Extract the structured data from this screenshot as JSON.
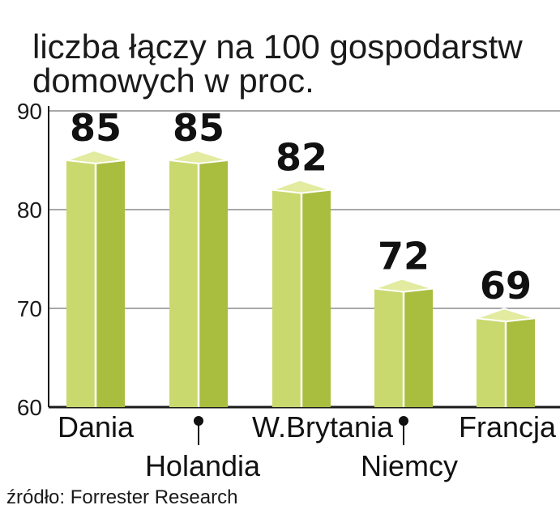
{
  "chart_data": {
    "type": "bar",
    "title": "liczba łączy na 100 gospodarstw domowych w proc.",
    "title_lines": [
      "liczba łączy na 100 gospodarstw",
      "domowych w proc."
    ],
    "categories": [
      "Dania",
      "Holandia",
      "W.Brytania",
      "Niemcy",
      "Francja"
    ],
    "values": [
      85,
      85,
      82,
      72,
      69
    ],
    "value_labels": [
      "85",
      "85",
      "82",
      "72",
      "69"
    ],
    "ylim": [
      60,
      90
    ],
    "yticks": [
      "60",
      "70",
      "80",
      "90"
    ],
    "grid": true,
    "source": "źródło: Forrester Research",
    "colors": {
      "bar_front": "#c9d96e",
      "bar_side": "#a9bd3f",
      "bar_top": "#e2eb9f",
      "grid": "#8c8c8c",
      "axis": "#1a1a1a"
    }
  }
}
